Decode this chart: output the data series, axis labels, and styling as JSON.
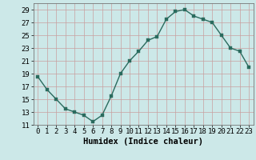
{
  "x": [
    0,
    1,
    2,
    3,
    4,
    5,
    6,
    7,
    8,
    9,
    10,
    11,
    12,
    13,
    14,
    15,
    16,
    17,
    18,
    19,
    20,
    21,
    22,
    23
  ],
  "y": [
    18.5,
    16.5,
    15.0,
    13.5,
    13.0,
    12.5,
    11.5,
    12.5,
    15.5,
    19.0,
    21.0,
    22.5,
    24.2,
    24.8,
    27.5,
    28.7,
    29.0,
    28.0,
    27.5,
    27.0,
    25.0,
    23.0,
    22.5,
    20.0
  ],
  "line_color": "#2a6b5e",
  "marker_color": "#2a6b5e",
  "bg_color": "#cce8e8",
  "grid_color": "#b8d8d8",
  "xlabel": "Humidex (Indice chaleur)",
  "xlim": [
    -0.5,
    23.5
  ],
  "ylim": [
    11,
    30
  ],
  "yticks": [
    11,
    13,
    15,
    17,
    19,
    21,
    23,
    25,
    27,
    29
  ],
  "xlabel_fontsize": 7.5,
  "tick_fontsize": 6.5
}
